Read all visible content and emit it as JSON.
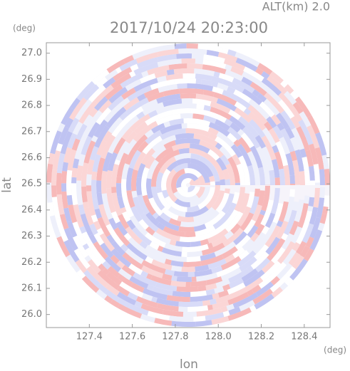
{
  "chart_data": {
    "type": "radar",
    "title": "2017/10/24 20:23:00",
    "subtitle": "ALT(km) 2.0",
    "x_label": "lon",
    "y_label": "lat",
    "x_unit": "(deg)",
    "y_unit": "(deg)",
    "xlim": [
      127.2,
      128.52
    ],
    "ylim": [
      25.95,
      27.04
    ],
    "xticks": [
      127.4,
      127.6,
      127.8,
      {
        "value": 128.0,
        "label": "128.0"
      },
      128.2,
      128.4
    ],
    "yticks": [
      {
        "value": 26.0,
        "label": "26.0"
      },
      26.1,
      26.2,
      26.3,
      26.4,
      26.5,
      26.6,
      26.7,
      26.8,
      26.9,
      {
        "value": 27.0,
        "label": "27.0"
      }
    ]
  }
}
